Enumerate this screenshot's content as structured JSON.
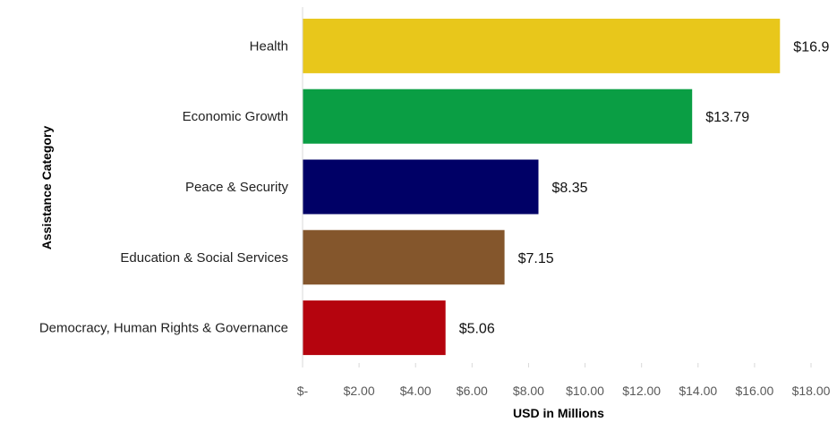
{
  "chart_data": {
    "type": "bar",
    "orientation": "horizontal",
    "title": "",
    "xlabel": "USD in Millions",
    "ylabel": "Assistance Category",
    "categories": [
      "Health",
      "Economic Growth",
      "Peace & Security",
      "Education & Social Services",
      "Democracy, Human Rights & Governance"
    ],
    "values": [
      16.9,
      13.79,
      8.35,
      7.15,
      5.06
    ],
    "value_labels": [
      "$16.9",
      "$13.79",
      "$8.35",
      "$7.15",
      "$5.06"
    ],
    "colors": [
      "#E8C71B",
      "#0A9E44",
      "#000066",
      "#84562C",
      "#B5040E"
    ],
    "xlim": [
      0,
      18
    ],
    "xticks": [
      0,
      2,
      4,
      6,
      8,
      10,
      12,
      14,
      16,
      18
    ],
    "xtick_labels": [
      "$-",
      "$2.00",
      "$4.00",
      "$6.00",
      "$8.00",
      "$10.00",
      "$12.00",
      "$14.00",
      "$16.00",
      "$18.00"
    ],
    "grid": false,
    "legend": "none"
  }
}
